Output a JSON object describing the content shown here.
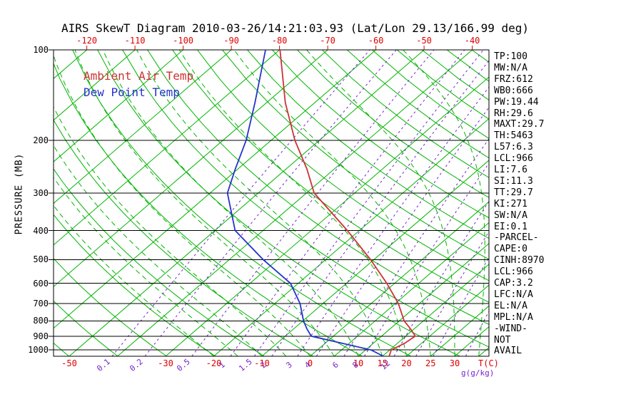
{
  "chart_data": {
    "type": "line",
    "title": "AIRS SkewT Diagram 2010-03-26/14:21:03.93 (Lat/Lon 29.13/166.99 deg)",
    "x_axis": {
      "label": "T(C)",
      "top_ticks": [
        -120,
        -110,
        -100,
        -90,
        -80,
        -70,
        -60,
        -50,
        -40
      ],
      "bottom_ticks": [
        -50,
        -30,
        -20,
        -10,
        0,
        10,
        15,
        20,
        25,
        30
      ]
    },
    "y_axis": {
      "label": "PRESSURE (MB)",
      "ticks": [
        100,
        200,
        300,
        400,
        500,
        600,
        700,
        800,
        900,
        1000
      ],
      "scale": "log",
      "range": [
        100,
        1050
      ]
    },
    "series": [
      {
        "name": "Ambient Air Temp",
        "color": "#cc3333",
        "data_name": "ambient-temp-curve",
        "points": [
          [
            1050,
            16.4
          ],
          [
            1000,
            15.3
          ],
          [
            950,
            16.5
          ],
          [
            900,
            17.0
          ],
          [
            850,
            14.2
          ],
          [
            800,
            11.0
          ],
          [
            700,
            5.6
          ],
          [
            600,
            -1.6
          ],
          [
            500,
            -10.7
          ],
          [
            400,
            -22.5
          ],
          [
            300,
            -38.4
          ],
          [
            250,
            -45.6
          ],
          [
            200,
            -55.1
          ],
          [
            150,
            -66.1
          ],
          [
            100,
            -79.9
          ]
        ]
      },
      {
        "name": "Dew Point Temp",
        "color": "#2233cc",
        "data_name": "dew-point-curve",
        "points": [
          [
            1050,
            15.2
          ],
          [
            1000,
            11.1
          ],
          [
            900,
            -4.6
          ],
          [
            850,
            -7.3
          ],
          [
            800,
            -9.9
          ],
          [
            700,
            -14.8
          ],
          [
            600,
            -21.6
          ],
          [
            500,
            -33.0
          ],
          [
            400,
            -45.8
          ],
          [
            300,
            -56.4
          ],
          [
            250,
            -60.5
          ],
          [
            200,
            -65.2
          ],
          [
            150,
            -72.4
          ],
          [
            100,
            -82.9
          ]
        ]
      }
    ],
    "background": {
      "isotherms_c": [
        -130,
        -120,
        -110,
        -100,
        -90,
        -80,
        -70,
        -60,
        -50,
        -40,
        -30,
        -20,
        -10,
        0,
        5,
        10,
        15,
        20,
        25,
        30,
        35,
        40
      ],
      "dry_adiabats_k": [
        220,
        230,
        240,
        250,
        260,
        270,
        280,
        290,
        300,
        310,
        320,
        330,
        340,
        350,
        360,
        370,
        380,
        390,
        400,
        410,
        420,
        430,
        440,
        450,
        460
      ],
      "moist_adiabats_surface_c": [
        -20,
        -15,
        -10,
        -5,
        0,
        5,
        10,
        15,
        20,
        25,
        30,
        35,
        40
      ],
      "mixing_ratio_lines_gkg": [
        0.1,
        0.2,
        0.5,
        1,
        1.5,
        2,
        3,
        4,
        6,
        8,
        12,
        16,
        20,
        30
      ],
      "mixing_ratio_labels": [
        0.1,
        0.2,
        0.5,
        1,
        1.5,
        2,
        3,
        4,
        6,
        8,
        12
      ],
      "mixing_ratio_unit_label": "g(g/kg)",
      "colors": {
        "isotherm": "#00b400",
        "adiabat": "#00b400",
        "mixing": "#7722cc",
        "pressure_line": "#000000"
      }
    },
    "grid": true,
    "legend_position": "top-left-inside"
  },
  "colors": {
    "temp_label": "#dd0000",
    "mixing_label": "#7722cc",
    "text": "#000000"
  },
  "stats": {
    "lines": [
      "TP:100",
      "MW:N/A",
      "FRZ:612",
      "WB0:666",
      "PW:19.44",
      "RH:29.6",
      "MAXT:29.7",
      "TH:5463",
      "L57:6.3",
      "LCL:966",
      "LI:7.6",
      "SI:11.3",
      "TT:29.7",
      "KI:271",
      "SW:N/A",
      "EI:0.1",
      "-PARCEL-",
      "CAPE:0",
      "CINH:8970",
      "LCL:966",
      "CAP:3.2",
      "LFC:N/A",
      "EL:N/A",
      "MPL:N/A",
      "-WIND-",
      "NOT",
      "AVAIL"
    ]
  }
}
